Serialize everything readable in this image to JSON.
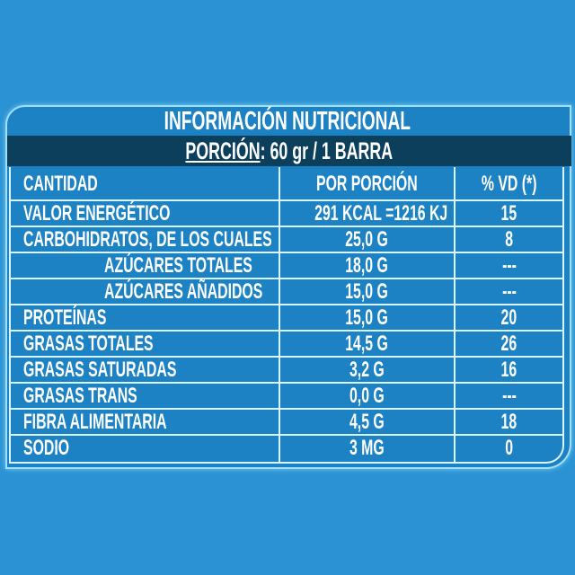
{
  "title": "INFORMACIÓN NUTRICIONAL",
  "portion": {
    "label": "PORCIÓN",
    "value": ": 60 gr  / 1 BARRA"
  },
  "headers": {
    "amount": "CANTIDAD",
    "per_portion": "POR PORCIÓN",
    "dv": "% VD (*)"
  },
  "rows": [
    {
      "name": "VALOR ENERGÉTICO",
      "value": "291 KCAL =1216  KJ",
      "dv": "15"
    },
    {
      "name": "CARBOHIDRATOS, DE LOS CUALES",
      "value": "25,0 G",
      "dv": "8"
    },
    {
      "name": "AZÚCARES TOTALES",
      "value": "18,0  G",
      "dv": "---"
    },
    {
      "name": "AZÚCARES AÑADIDOS",
      "value": "15,0  G",
      "dv": "---"
    },
    {
      "name": "PROTEÍNAS",
      "value": "15,0 G",
      "dv": "20"
    },
    {
      "name": "GRASAS TOTALES",
      "value": "14,5 G",
      "dv": "26"
    },
    {
      "name": "GRASAS SATURADAS",
      "value": "3,2 G",
      "dv": "16"
    },
    {
      "name": "GRASAS TRANS",
      "value": "0,0 G",
      "dv": "---"
    },
    {
      "name": "FIBRA ALIMENTARIA",
      "value": "4,5 G",
      "dv": "18"
    },
    {
      "name": "SODIO",
      "value": "3 MG",
      "dv": "0"
    }
  ],
  "colors": {
    "background": "#2b93d4",
    "panel": "#1c82c4",
    "band": "#0c3f5c",
    "text": "#ffffff"
  }
}
